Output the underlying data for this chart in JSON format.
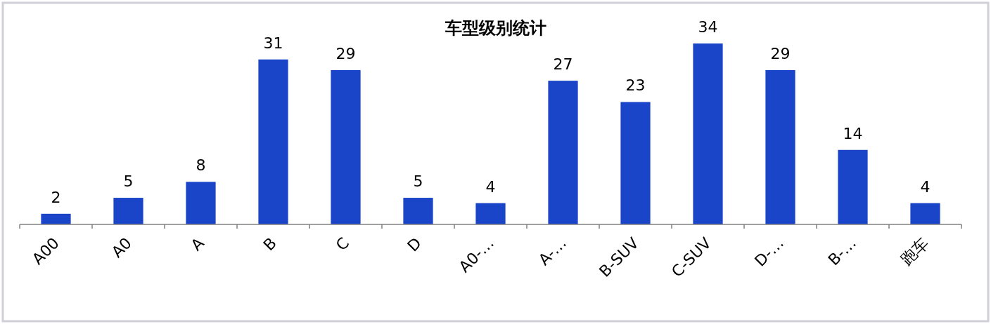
{
  "chart_data": {
    "type": "bar",
    "title": "车型级别统计",
    "categories": [
      "A00",
      "A0",
      "A",
      "B",
      "C",
      "D",
      "A0-…",
      "A-…",
      "B-SUV",
      "C-SUV",
      "D-…",
      "B-…",
      "跑车"
    ],
    "values": [
      2,
      5,
      8,
      31,
      29,
      5,
      4,
      27,
      23,
      34,
      29,
      14,
      4
    ],
    "color": "#1a45c8",
    "data_labels": true
  }
}
